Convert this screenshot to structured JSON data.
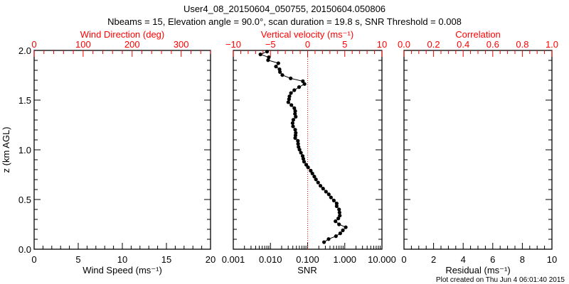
{
  "title": "User4_08_20150604_050755, 20150604.050806",
  "subtitle": "Nbeams = 15, Elevation angle = 90.0°, scan duration = 19.8 s, SNR Threshold = 0.008",
  "footer": "Plot created on Thu Jun  4 06:01:40 2015",
  "colors": {
    "axis": "#000000",
    "top_axis": "#ff0000",
    "data": "#000000",
    "zero_line": "#ff0000"
  },
  "chart_data": [
    {
      "type": "line",
      "ylabel": "z (km AGL)",
      "ylim": [
        0,
        2.0
      ],
      "yticks": [
        "0.0",
        "0.5",
        "1.0",
        "1.5",
        "2.0"
      ],
      "xlabel": "Wind Speed (ms⁻¹)",
      "xlim": [
        0,
        20
      ],
      "xticks": [
        "0",
        "5",
        "10",
        "15",
        "20"
      ],
      "top_xlabel": "Wind Direction (deg)",
      "top_xlim": [
        0,
        360
      ],
      "top_xticks": [
        "0",
        "100",
        "200",
        "300"
      ],
      "series": []
    },
    {
      "type": "line",
      "ylim": [
        0,
        2.0
      ],
      "xlabel": "SNR",
      "xscale": "log",
      "xlim": [
        0.001,
        10
      ],
      "xticks": [
        "0.001",
        "0.010",
        "0.100",
        "1.000",
        "10.000"
      ],
      "top_xlabel": "Vertical velocity (ms⁻¹)",
      "top_xlim": [
        -10,
        10
      ],
      "top_xticks": [
        "−10",
        "−5",
        "0",
        "5",
        "10"
      ],
      "reference_line": {
        "axis": "top",
        "value": 0,
        "style": "dotted"
      },
      "series": [
        {
          "name": "Vertical velocity",
          "axis": "top",
          "z": [
            1.988,
            1.96,
            1.931,
            1.902,
            1.871,
            1.838,
            1.81,
            1.783,
            1.752,
            1.719,
            1.69,
            1.662,
            1.631,
            1.6,
            1.571,
            1.538,
            1.51,
            1.479,
            1.45,
            1.419,
            1.39,
            1.362,
            1.333,
            1.302,
            1.269,
            1.236,
            1.202,
            1.171,
            1.145,
            1.119,
            1.09,
            1.06,
            1.029,
            1.002,
            0.971,
            0.938,
            0.91,
            0.881,
            0.85,
            0.824,
            0.79,
            0.762,
            0.731,
            0.702,
            0.671,
            0.638,
            0.61,
            0.579,
            0.552,
            0.521,
            0.49,
            0.46,
            0.433,
            0.4,
            0.369,
            0.338,
            0.31,
            0.281,
            0.25,
            0.221,
            0.19,
            0.16,
            0.131,
            0.102,
            0.071
          ],
          "values": [
            -5.45,
            -6.35,
            -5.22,
            -5.32,
            -3.94,
            -4.26,
            -3.78,
            -3.72,
            -3.4,
            -2.28,
            -0.64,
            -0.42,
            -1.15,
            -1.79,
            -2.24,
            -2.44,
            -2.5,
            -2.6,
            -2.18,
            -1.79,
            -1.67,
            -1.7,
            -1.6,
            -1.92,
            -2.02,
            -1.96,
            -1.67,
            -1.6,
            -1.63,
            -1.67,
            -1.31,
            -1.28,
            -1.22,
            -1.09,
            -0.9,
            -0.67,
            -0.58,
            -0.48,
            -0.19,
            0.06,
            0.42,
            0.64,
            0.9,
            1.12,
            1.41,
            1.73,
            2.08,
            2.47,
            2.85,
            3.14,
            3.53,
            3.91,
            3.91,
            4.23,
            4.29,
            4.33,
            4.13,
            3.75,
            4.23,
            5.13,
            4.74,
            4.39,
            3.81,
            2.82,
            2.21
          ]
        }
      ]
    },
    {
      "type": "line",
      "ylim": [
        0,
        2.0
      ],
      "xlabel": "Residual (ms⁻¹)",
      "xlim": [
        0,
        10
      ],
      "xticks": [
        "0",
        "2",
        "4",
        "6",
        "8",
        "10"
      ],
      "top_xlabel": "Correlation",
      "top_xlim": [
        0,
        1.0
      ],
      "top_xticks": [
        "0.0",
        "0.2",
        "0.4",
        "0.6",
        "0.8",
        "1.0"
      ],
      "series": []
    }
  ]
}
